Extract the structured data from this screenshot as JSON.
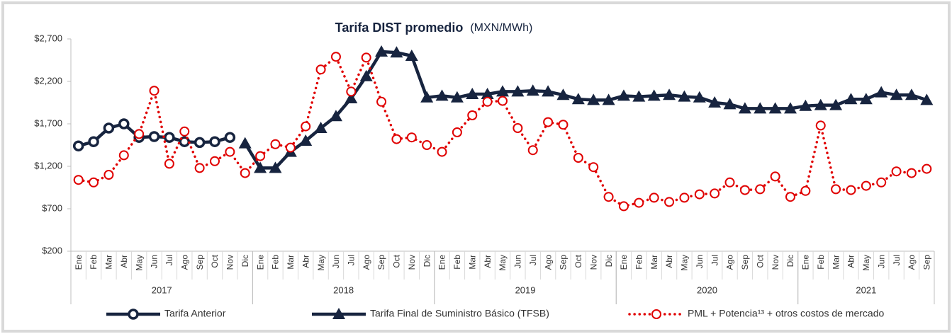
{
  "chart_data": {
    "type": "line",
    "title": "Tarifa DIST promedio",
    "subtitle": "(MXN/MWh)",
    "categories": [
      "Ene",
      "Feb",
      "Mar",
      "Abr",
      "May",
      "Jun",
      "Jul",
      "Ago",
      "Sep",
      "Oct",
      "Nov",
      "Dic",
      "Ene",
      "Feb",
      "Mar",
      "Abr",
      "May",
      "Jun",
      "Jul",
      "Ago",
      "Sep",
      "Oct",
      "Nov",
      "Dic",
      "Ene",
      "Feb",
      "Mar",
      "Abr",
      "May",
      "Jun",
      "Jul",
      "Ago",
      "Sep",
      "Oct",
      "Nov",
      "Dic",
      "Ene",
      "Feb",
      "Mar",
      "Abr",
      "May",
      "Jun",
      "Jul",
      "Ago",
      "Sep",
      "Oct",
      "Nov",
      "Dic",
      "Ene",
      "Feb",
      "Mar",
      "Abr",
      "May",
      "Jun",
      "Jul",
      "Ago",
      "Sep"
    ],
    "groups": [
      "2017",
      "2018",
      "2019",
      "2020",
      "2021"
    ],
    "series": [
      {
        "name": "Tarifa Anterior",
        "color": "#17243f",
        "marker": "circle",
        "dash": false,
        "values": [
          1440,
          1490,
          1650,
          1700,
          1540,
          1550,
          1540,
          1490,
          1480,
          1490,
          1540,
          null,
          null,
          null,
          null,
          null,
          null,
          null,
          null,
          null,
          null,
          null,
          null,
          null,
          null,
          null,
          null,
          null,
          null,
          null,
          null,
          null,
          null,
          null,
          null,
          null,
          null,
          null,
          null,
          null,
          null,
          null,
          null,
          null,
          null,
          null,
          null,
          null,
          null,
          null,
          null,
          null,
          null,
          null,
          null,
          null,
          null
        ]
      },
      {
        "name": "Tarifa Final de Suministro Básico (TFSB)",
        "color": "#17243f",
        "marker": "triangle",
        "dash": false,
        "values": [
          null,
          null,
          null,
          null,
          null,
          null,
          null,
          null,
          null,
          null,
          null,
          1470,
          1180,
          1180,
          1370,
          1500,
          1650,
          1790,
          2000,
          2260,
          2550,
          2540,
          2500,
          2010,
          2030,
          2010,
          2050,
          2050,
          2080,
          2080,
          2090,
          2080,
          2040,
          1990,
          1980,
          1980,
          2030,
          2020,
          2030,
          2040,
          2020,
          2010,
          1950,
          1930,
          1880,
          1880,
          1880,
          1880,
          1910,
          1920,
          1920,
          1990,
          1990,
          2070,
          2040,
          2040,
          1980
        ]
      },
      {
        "name": "PML + Potencia¹³ + otros costos de mercado",
        "color": "#e00000",
        "marker": "open-circle",
        "dash": true,
        "values": [
          1040,
          1010,
          1100,
          1330,
          1580,
          2090,
          1230,
          1610,
          1180,
          1260,
          1370,
          1120,
          1320,
          1460,
          1420,
          1670,
          2340,
          2490,
          2080,
          2480,
          1960,
          1520,
          1540,
          1450,
          1370,
          1600,
          1800,
          1960,
          1970,
          1650,
          1390,
          1720,
          1690,
          1300,
          1190,
          840,
          730,
          770,
          830,
          780,
          830,
          870,
          880,
          1010,
          920,
          930,
          1080,
          840,
          910,
          1680,
          930,
          920,
          970,
          1010,
          1140,
          1120,
          1170
        ]
      }
    ],
    "ylim": [
      200,
      2700
    ],
    "yticks": [
      {
        "value": 200,
        "label": "$200"
      },
      {
        "value": 700,
        "label": "$700"
      },
      {
        "value": 1200,
        "label": "$1,200"
      },
      {
        "value": 1700,
        "label": "$1,700"
      },
      {
        "value": 2200,
        "label": "$2,200"
      },
      {
        "value": 2700,
        "label": "$2,700"
      }
    ],
    "grid": false,
    "legend": "bottom"
  }
}
